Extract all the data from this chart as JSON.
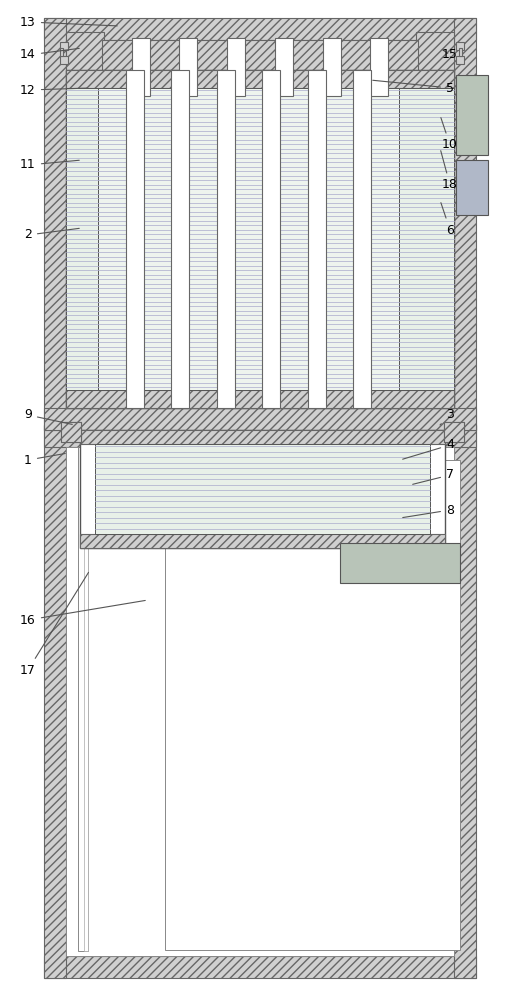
{
  "bg_color": "#ffffff",
  "hatch_fc": "#d0d0d0",
  "hatch_ec": "#666666",
  "fin_line_color": "#aaaacc",
  "fin_bg": "#e8f0e8",
  "fin_bg2": "#eef4ee",
  "gray_box": "#b8c4b8",
  "labels": [
    [
      13,
      0.055,
      0.968,
      0.2,
      0.958
    ],
    [
      14,
      0.055,
      0.938,
      0.148,
      0.92
    ],
    [
      12,
      0.055,
      0.893,
      0.175,
      0.888
    ],
    [
      5,
      0.875,
      0.878,
      0.72,
      0.873
    ],
    [
      11,
      0.055,
      0.8,
      0.16,
      0.795
    ],
    [
      10,
      0.875,
      0.762,
      0.86,
      0.748
    ],
    [
      18,
      0.875,
      0.718,
      0.86,
      0.7
    ],
    [
      2,
      0.055,
      0.665,
      0.16,
      0.655
    ],
    [
      6,
      0.875,
      0.665,
      0.86,
      0.66
    ],
    [
      15,
      0.875,
      0.938,
      0.862,
      0.92
    ],
    [
      3,
      0.875,
      0.593,
      0.862,
      0.58
    ],
    [
      4,
      0.875,
      0.563,
      0.8,
      0.548
    ],
    [
      9,
      0.055,
      0.59,
      0.148,
      0.58
    ],
    [
      7,
      0.875,
      0.53,
      0.82,
      0.518
    ],
    [
      1,
      0.055,
      0.555,
      0.125,
      0.565
    ],
    [
      8,
      0.875,
      0.498,
      0.79,
      0.488
    ],
    [
      16,
      0.055,
      0.385,
      0.185,
      0.378
    ],
    [
      17,
      0.055,
      0.34,
      0.17,
      0.43
    ]
  ]
}
